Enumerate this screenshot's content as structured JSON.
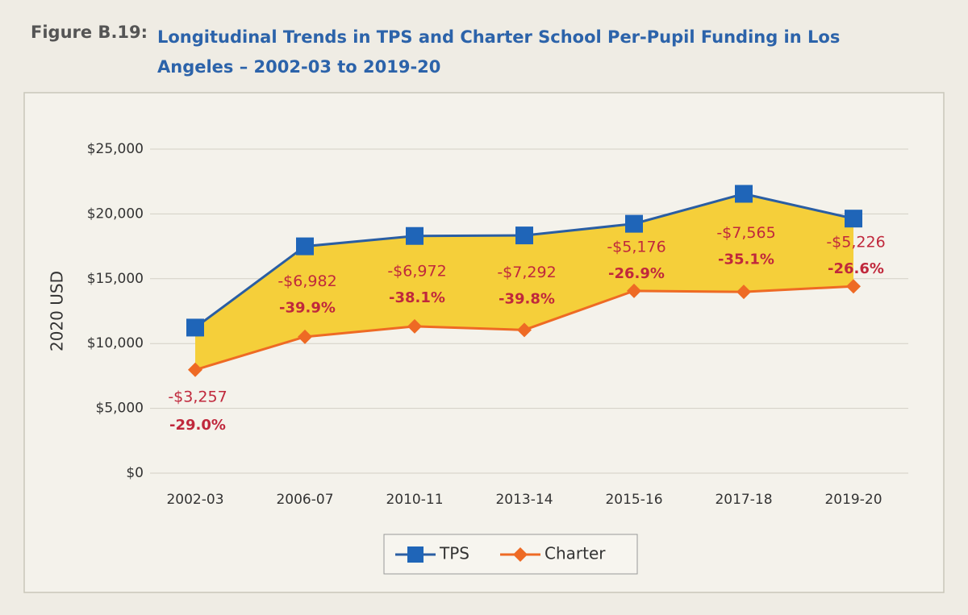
{
  "header": {
    "label": "Figure B.19:"
  },
  "chart_data": {
    "type": "line",
    "title": "Longitudinal Trends in TPS and Charter School Per-Pupil Funding in Los Angeles – 2002-03 to 2019-20",
    "ylabel": "2020 USD",
    "categories": [
      "2002-03",
      "2006-07",
      "2010-11",
      "2013-14",
      "2015-16",
      "2017-18",
      "2019-20"
    ],
    "series": [
      {
        "name": "TPS",
        "color": "#1f65b8",
        "line_color": "#2a5ea3",
        "marker": "square",
        "values": [
          11230,
          17500,
          18300,
          18340,
          19240,
          21550,
          19640
        ]
      },
      {
        "name": "Charter",
        "color": "#ee6a24",
        "line_color": "#ee6a24",
        "marker": "diamond",
        "values": [
          7973,
          10518,
          11328,
          11048,
          14064,
          13985,
          14414
        ]
      }
    ],
    "fill_between_color": "#f5cf3a",
    "difference_labels": [
      "-$3,257",
      "-$6,982",
      "-$6,972",
      "-$7,292",
      "-$5,176",
      "-$7,565",
      "-$5,226"
    ],
    "percent_labels": [
      "-29.0%",
      "-39.9%",
      "-38.1%",
      "-39.8%",
      "-26.9%",
      "-35.1%",
      "-26.6%"
    ],
    "ylim": [
      0,
      25000
    ],
    "yticks": [
      {
        "value": 0,
        "label": "$0"
      },
      {
        "value": 5000,
        "label": "$5,000"
      },
      {
        "value": 10000,
        "label": "$10,000"
      },
      {
        "value": 15000,
        "label": "$15,000"
      },
      {
        "value": 20000,
        "label": "$20,000"
      },
      {
        "value": 25000,
        "label": "$25,000"
      }
    ],
    "grid": true,
    "legend": "bottom"
  }
}
